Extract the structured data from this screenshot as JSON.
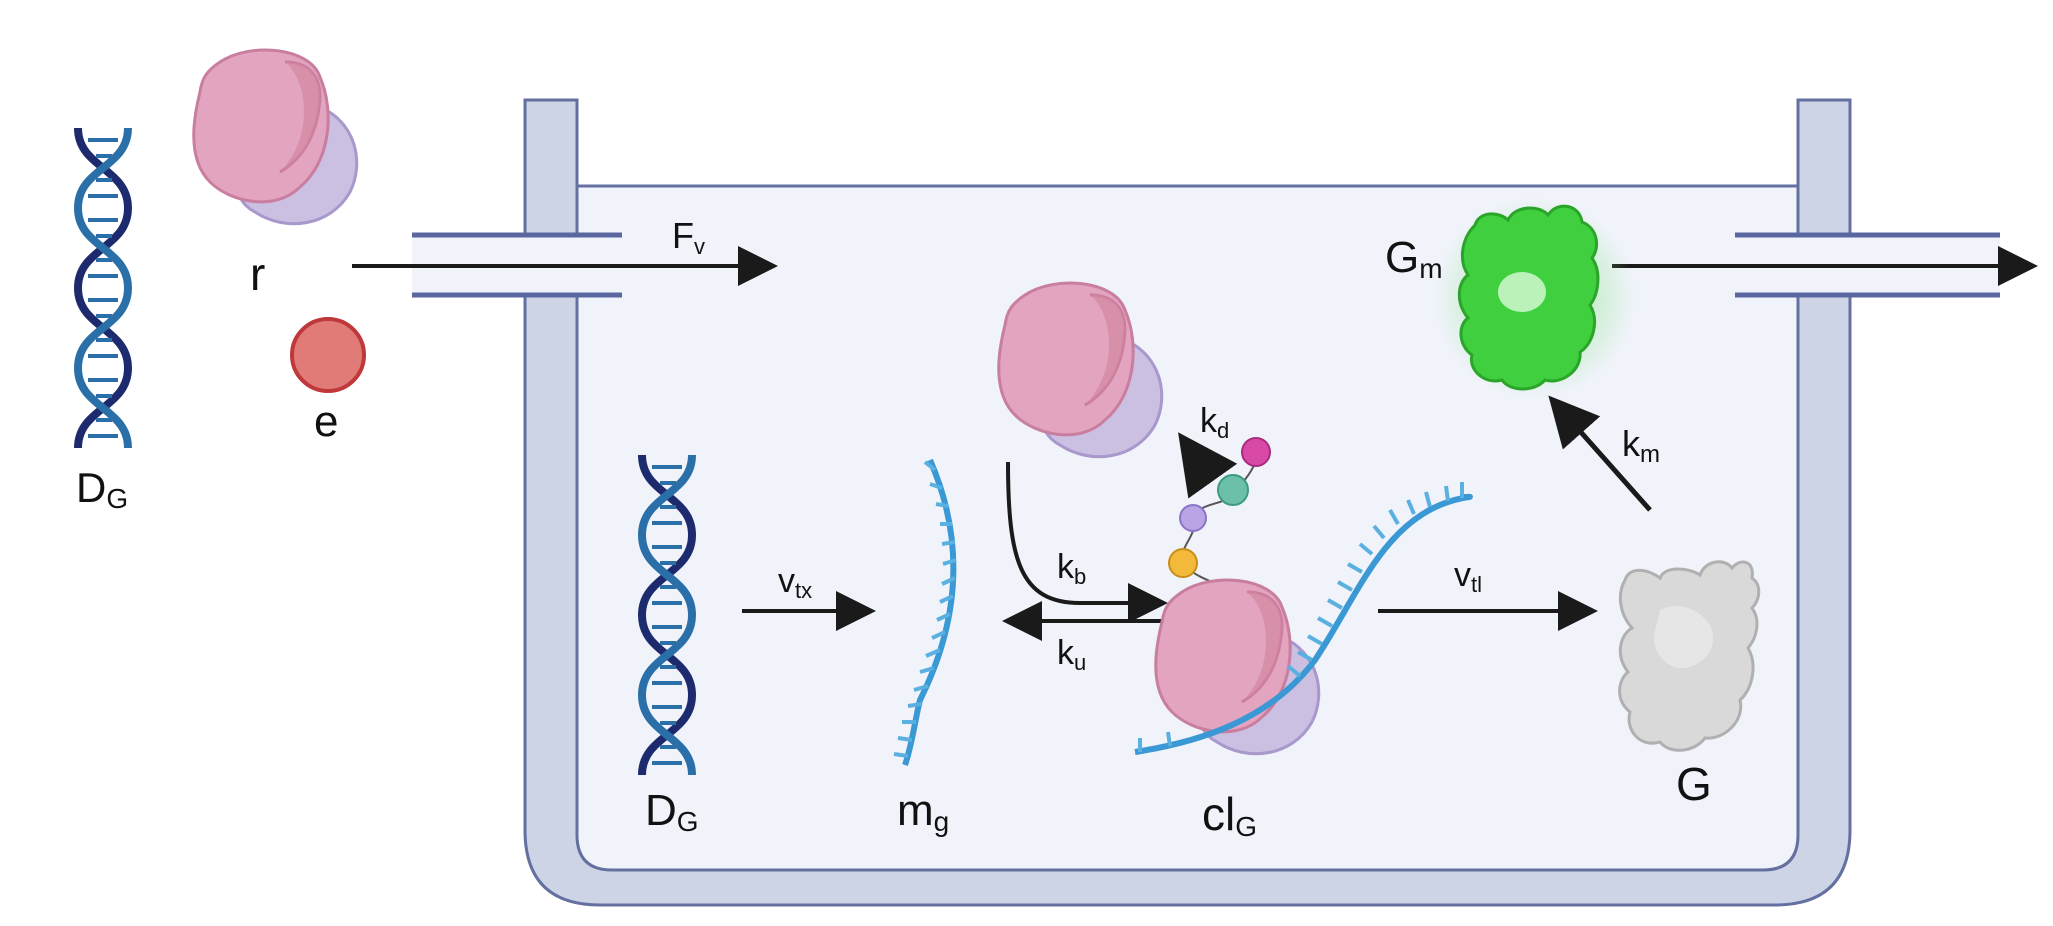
{
  "labels": {
    "dna_outside": {
      "main": "D",
      "sub": "G"
    },
    "ribosome_outside": "r",
    "energy_outside": "e",
    "flow_in": {
      "main": "F",
      "sub": "v"
    },
    "dna_inside": {
      "main": "D",
      "sub": "G"
    },
    "transcription": {
      "main": "v",
      "sub": "tx"
    },
    "mrna": {
      "main": "m",
      "sub": "g"
    },
    "binding": {
      "main": "k",
      "sub": "b"
    },
    "unbinding": {
      "main": "k",
      "sub": "u"
    },
    "degradation": {
      "main": "k",
      "sub": "d"
    },
    "complex": {
      "main": "cl",
      "sub": "G"
    },
    "translation": {
      "main": "v",
      "sub": "tl"
    },
    "protein": "G",
    "maturation": {
      "main": "k",
      "sub": "m"
    },
    "mature_protein": {
      "main": "G",
      "sub": "m"
    }
  },
  "icons": [
    "dna-helix-icon",
    "ribosome-icon",
    "energy-molecule-icon",
    "mrna-strand-icon",
    "peptide-chain-icon",
    "protein-icon",
    "fluorescent-protein-icon",
    "reactor-tank-icon"
  ],
  "colors": {
    "tank_fill": "#f0f3fa",
    "tank_wall": "#cdd4e6",
    "tank_outline": "#6470a0",
    "dna_dark": "#1e2a6e",
    "dna_light": "#2a6fa8",
    "mrna": "#3a98d4",
    "ribosome_large": "#e2a4bf",
    "ribosome_small": "#cbbfe2",
    "energy": "#e07b78",
    "protein_grey": "#d9d9d9",
    "protein_green": "#3fcf3f",
    "arrow": "#1a1a1a"
  }
}
